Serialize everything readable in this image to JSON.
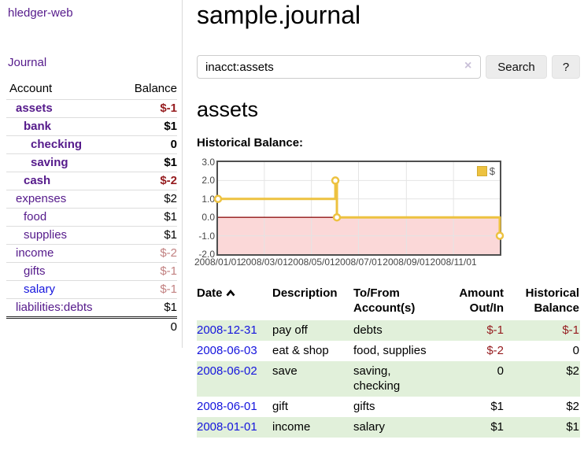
{
  "app": {
    "title": "hledger-web"
  },
  "colors": {
    "link_purple": "#551A8B",
    "link_blue": "#1414dd",
    "negative_red": "#951b1e",
    "faded_red": "#c28181",
    "row_stripe_green": "#e1f0da",
    "chart_line_gold": "#edc240",
    "chart_negative_fill": "#fbd8d8",
    "chart_zero_line": "#921515",
    "button_gray": "#ececec"
  },
  "sidebar": {
    "journal_link": "Journal",
    "accounts": {
      "headers": {
        "account": "Account",
        "balance": "Balance"
      },
      "rows": [
        {
          "account": "assets",
          "balance": "$-1"
        },
        {
          "account": "bank",
          "balance": "$1"
        },
        {
          "account": "checking",
          "balance": "0"
        },
        {
          "account": "saving",
          "balance": "$1"
        },
        {
          "account": "cash",
          "balance": "$-2"
        },
        {
          "account": "expenses",
          "balance": "$2"
        },
        {
          "account": "food",
          "balance": "$1"
        },
        {
          "account": "supplies",
          "balance": "$1"
        },
        {
          "account": "income",
          "balance": "$-2"
        },
        {
          "account": "gifts",
          "balance": "$-1"
        },
        {
          "account": "salary",
          "balance": "$-1"
        },
        {
          "account": "liabilities:debts",
          "balance": "$1"
        }
      ],
      "total": "0"
    }
  },
  "main": {
    "title": "sample.journal",
    "search": {
      "value": "inacct:assets",
      "clear_icon": "×",
      "button_label": "Search",
      "help_label": "?"
    },
    "account_heading": "assets",
    "chart_label": "Historical Balance:"
  },
  "chart_data": {
    "type": "line",
    "step": true,
    "title": "Historical Balance",
    "series": [
      {
        "name": "$",
        "color": "#edc240",
        "points": [
          [
            "2008-01-01",
            1
          ],
          [
            "2008-06-01",
            2
          ],
          [
            "2008-06-03",
            0
          ],
          [
            "2008-12-31",
            -1
          ]
        ]
      }
    ],
    "x_range": [
      "2008-01-01",
      "2008-12-31"
    ],
    "ylim": [
      -2,
      3
    ],
    "yticks": [
      3.0,
      2.0,
      1.0,
      0.0,
      -1.0,
      -2.0
    ],
    "xticks": [
      {
        "date": "2008-01-01",
        "label": "2008/01/01"
      },
      {
        "date": "2008-03-01",
        "label": "2008/03/01"
      },
      {
        "date": "2008-05-01",
        "label": "2008/05/01"
      },
      {
        "date": "2008-07-01",
        "label": "2008/07/01"
      },
      {
        "date": "2008-09-01",
        "label": "2008/09/01"
      },
      {
        "date": "2008-11-01",
        "label": "2008/11/01"
      }
    ],
    "grid": true,
    "legend": {
      "position": "top-right",
      "label": "$"
    },
    "negative_fill": "#fbd8d8",
    "zero_line_color": "#921515"
  },
  "register": {
    "headers": {
      "date": "Date",
      "description": "Description",
      "accounts": "To/From Account(s)",
      "amount": "Amount Out/In",
      "balance": "Historical Balance"
    },
    "rows": [
      {
        "date": "2008-12-31",
        "description": "pay off",
        "accounts": "debts",
        "amount": "$-1",
        "balance": "$-1"
      },
      {
        "date": "2008-06-03",
        "description": "eat & shop",
        "accounts": "food, supplies",
        "amount": "$-2",
        "balance": "0"
      },
      {
        "date": "2008-06-02",
        "description": "save",
        "accounts": "saving, checking",
        "amount": "0",
        "balance": "$2"
      },
      {
        "date": "2008-06-01",
        "description": "gift",
        "accounts": "gifts",
        "amount": "$1",
        "balance": "$2"
      },
      {
        "date": "2008-01-01",
        "description": "income",
        "accounts": "salary",
        "amount": "$1",
        "balance": "$1"
      }
    ]
  }
}
